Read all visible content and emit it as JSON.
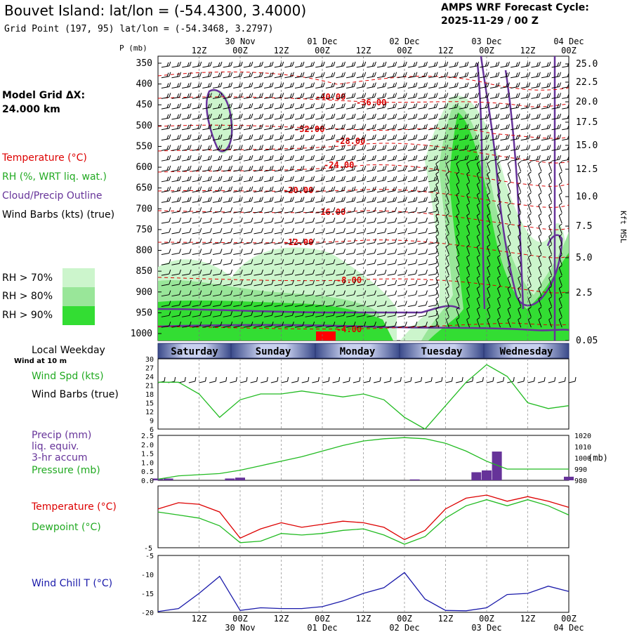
{
  "header": {
    "title": "Bouvet Island:  lat/lon = (-54.4300, 3.4000)",
    "grid_point": "Grid Point (197, 95) lat/lon = (-54.3468, 3.2797)",
    "cycle_line1": "AMPS WRF Forecast Cycle:",
    "cycle_line2": "2025-11-29 / 00  Z"
  },
  "left_panel": {
    "p_label": "P (mb)",
    "model_grid_line1": "Model Grid ΔX:",
    "model_grid_line2": " 24.000 km",
    "legend_temperature": "Temperature (°C)",
    "legend_rh": "RH (%, WRT liq. wat.)",
    "legend_cloud": "Cloud/Precip Outline",
    "legend_wind": "Wind Barbs (kts) (true)",
    "rh_levels": [
      "RH > 70%",
      "RH > 80%",
      "RH > 90%"
    ],
    "rh_colors": [
      "#ccf5cc",
      "#99e699",
      "#33dd33"
    ]
  },
  "time_axis": {
    "hour_labels": [
      "12Z",
      "00Z",
      "12Z",
      "00Z",
      "12Z",
      "00Z",
      "12Z",
      "00Z",
      "12Z",
      "00Z"
    ],
    "date_labels": [
      "30 Nov",
      "01 Dec",
      "02 Dec",
      "03 Dec",
      "04 Dec"
    ],
    "weekdays": [
      "Saturday",
      "Sunday",
      "Monday",
      "Tuesday",
      "Wednesday"
    ]
  },
  "right_axis": {
    "unit_label": "Kft MSL",
    "ticks": [
      "25.0",
      "22.5",
      "20.0",
      "17.5",
      "15.0",
      "12.5",
      "10.0",
      "7.5",
      "5.0",
      "2.5",
      "0.05"
    ]
  },
  "panel_labels": {
    "local_weekday": "Local Weekday",
    "wind_at": "Wind at 10 m",
    "wind_spd": "Wind Spd (kts)",
    "wind_barbs": "Wind Barbs (true)",
    "precip1": "Precip (mm)",
    "precip2": "liq. equiv.",
    "precip3": "3-hr accum",
    "pressure": "Pressure (mb)",
    "temperature": "Temperature (°C)",
    "dewpoint": "Dewpoint (°C)",
    "wind_chill": "Wind Chill T (°C)",
    "pressure_unit": "(mb)"
  },
  "colors": {
    "temp": "#dd0000",
    "green": "#22bb22",
    "purple": "#663399",
    "blue": "#1a1aaa",
    "weekday_bar": "#4a5a9a"
  },
  "chart_data": [
    {
      "type": "area",
      "name": "cross-section",
      "p_levels": [
        350,
        400,
        450,
        500,
        550,
        600,
        650,
        700,
        750,
        800,
        850,
        900,
        950,
        1000
      ],
      "isotherm_labels": [
        "-40.00",
        "-36.00",
        "-32.00",
        "-28.00",
        "-24.00",
        "-20.00",
        "-16.00",
        "-12.00",
        "-8.00",
        "-4.00"
      ]
    },
    {
      "type": "line",
      "name": "wind-speed",
      "y_ticks": [
        30,
        27,
        24,
        21,
        18,
        15,
        12,
        9,
        6
      ],
      "ylim": [
        6,
        30
      ],
      "x_hours": [
        0,
        6,
        12,
        18,
        24,
        30,
        36,
        42,
        48,
        54,
        60,
        66,
        72,
        78,
        84,
        90,
        96,
        102,
        108,
        114,
        120
      ],
      "values": [
        22,
        22,
        18,
        10,
        16,
        18,
        18,
        19,
        18,
        17,
        18,
        16,
        10,
        6,
        14,
        22,
        28,
        24,
        15,
        13,
        14
      ]
    },
    {
      "type": "line",
      "name": "precip-pressure",
      "precip_ticks": [
        "2.5",
        "2.0",
        "1.5",
        "1.0",
        "0.5",
        "0.0"
      ],
      "pressure_ticks": [
        "1020",
        "1010",
        "1000",
        "990",
        "980"
      ],
      "ylim_precip": [
        0,
        2.5
      ],
      "ylim_pressure": [
        980,
        1020
      ],
      "x_hours": [
        0,
        6,
        12,
        18,
        24,
        30,
        36,
        42,
        48,
        54,
        60,
        66,
        72,
        78,
        84,
        90,
        96,
        102,
        108,
        114,
        120
      ],
      "pressure": [
        981,
        984,
        985,
        986,
        989,
        993,
        997,
        1001,
        1006,
        1011,
        1015,
        1017,
        1018,
        1017,
        1013,
        1006,
        997,
        990,
        990,
        990,
        990
      ],
      "precip_hours": [
        0,
        3,
        21,
        24,
        75,
        93,
        96,
        99,
        120
      ],
      "precip": [
        0.1,
        0.1,
        0.1,
        0.15,
        0.05,
        0.45,
        0.55,
        1.6,
        0.2
      ]
    },
    {
      "type": "line",
      "name": "temperature-dewpoint",
      "y_ticks": [
        "-5"
      ],
      "x_hours": [
        0,
        6,
        12,
        18,
        24,
        30,
        36,
        42,
        48,
        54,
        60,
        66,
        72,
        78,
        84,
        90,
        96,
        102,
        108,
        114,
        120
      ],
      "temperature": [
        -1.2,
        -0.8,
        -0.9,
        -1.4,
        -3.1,
        -2.5,
        -2.1,
        -2.4,
        -2.2,
        -2.0,
        -2.1,
        -2.4,
        -3.2,
        -2.6,
        -1.2,
        -0.5,
        -0.3,
        -0.7,
        -0.4,
        -0.7,
        -1.1
      ],
      "dewpoint": [
        -1.4,
        -1.6,
        -1.8,
        -2.3,
        -3.4,
        -3.3,
        -2.8,
        -2.9,
        -2.8,
        -2.6,
        -2.5,
        -2.9,
        -3.5,
        -3.0,
        -1.8,
        -1.0,
        -0.6,
        -1.0,
        -0.6,
        -1.0,
        -1.6
      ]
    },
    {
      "type": "line",
      "name": "wind-chill",
      "y_ticks": [
        "-5",
        "-10",
        "-15",
        "-20"
      ],
      "ylim": [
        -20,
        -5
      ],
      "x_hours": [
        0,
        6,
        12,
        18,
        24,
        30,
        36,
        42,
        48,
        54,
        60,
        66,
        72,
        78,
        84,
        90,
        96,
        102,
        108,
        114,
        120
      ],
      "values": [
        -19.8,
        -19,
        -15,
        -10.5,
        -19.5,
        -18.8,
        -19,
        -19,
        -18.5,
        -17,
        -15,
        -13.5,
        -9.5,
        -16.5,
        -19.5,
        -19.6,
        -18.8,
        -15.3,
        -15,
        -13.1,
        -14.5
      ]
    }
  ]
}
